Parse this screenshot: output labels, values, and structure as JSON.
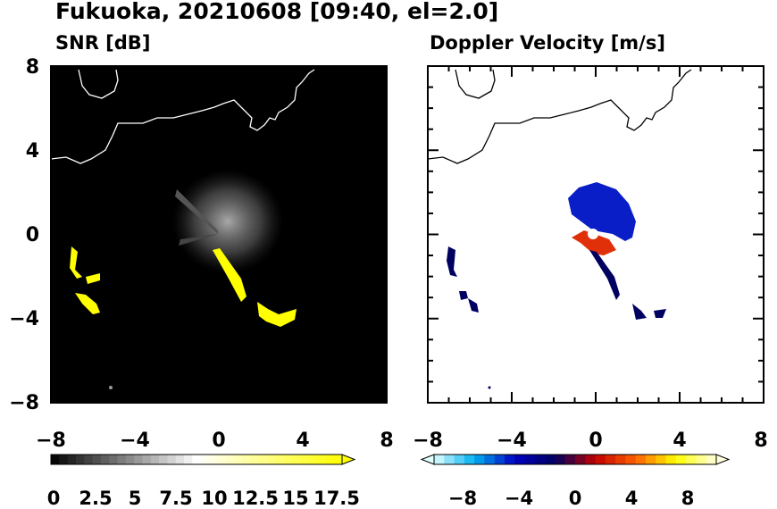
{
  "figure": {
    "title": "Fukuoka, 20210608 [09:40, el=2.0]"
  },
  "chart_data": [
    {
      "type": "heatmap",
      "title": "SNR [dB]",
      "xlim": [
        -8,
        8
      ],
      "ylim": [
        -8,
        8
      ],
      "xticks": [
        "−8",
        "−4",
        "0",
        "4",
        "8"
      ],
      "yticks": [
        "8",
        "4",
        "0",
        "−4",
        "−8"
      ],
      "colorbar": {
        "min": 0,
        "max": 17.5,
        "extend": "max",
        "ticks": [
          "0",
          "2.5",
          "5",
          "7.5",
          "10",
          "12.5",
          "15",
          "17.5"
        ],
        "colors": [
          "#000000",
          "#ffffff",
          "#ffff00"
        ]
      },
      "background_color": "#000000",
      "coastline_color": "#ffffff"
    },
    {
      "type": "heatmap",
      "title": "Doppler Velocity [m/s]",
      "xlim": [
        -8,
        8
      ],
      "ylim": [
        -8,
        8
      ],
      "xticks": [
        "−8",
        "−4",
        "0",
        "4",
        "8"
      ],
      "yticks": [
        "8",
        "4",
        "0",
        "−4",
        "−8"
      ],
      "colorbar": {
        "min": -10,
        "max": 10,
        "extend": "both",
        "ticks": [
          "−8",
          "−4",
          "0",
          "4",
          "8"
        ],
        "colors": [
          "#e0ffff",
          "#00b0f0",
          "#0000c0",
          "#000060",
          "#c00000",
          "#ff6000",
          "#ffff00",
          "#ffffe0"
        ]
      },
      "background_color": "#ffffff",
      "coastline_color": "#000000"
    }
  ]
}
